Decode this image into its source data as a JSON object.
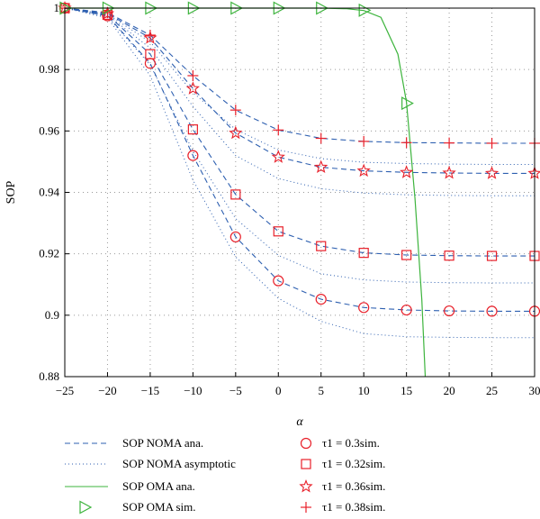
{
  "chart_data": {
    "type": "line",
    "xlabel": "α",
    "ylabel": "SOP",
    "xlim": [
      -25,
      30
    ],
    "ylim": [
      0.88,
      1.0
    ],
    "grid": true,
    "x_ticks": [
      -25,
      -20,
      -15,
      -10,
      -5,
      0,
      5,
      10,
      15,
      20,
      25,
      30
    ],
    "x_tick_labels": [
      "−25",
      "−20",
      "−15",
      "−10",
      "−5",
      "0",
      "5",
      "10",
      "15",
      "20",
      "25",
      "30"
    ],
    "y_ticks": [
      0.88,
      0.9,
      0.92,
      0.94,
      0.96,
      0.98,
      1.0
    ],
    "y_tick_labels": [
      "0.88",
      "0.9",
      "0.92",
      "0.94",
      "0.96",
      "0.98",
      "1"
    ],
    "x": [
      -25,
      -20,
      -15,
      -10,
      -5,
      0,
      5,
      10,
      15,
      20,
      25,
      30
    ],
    "colors": {
      "noma": "#2d5fb0",
      "oma": "#3db43d",
      "marker": "#e8202a"
    },
    "legend": [
      {
        "key": "noma_ana",
        "label": "SOP NOMA ana.",
        "style": "dashed",
        "color": "#2d5fb0"
      },
      {
        "key": "noma_asym",
        "label": "SOP NOMA asymptotic",
        "style": "dotted",
        "color": "#2d5fb0"
      },
      {
        "key": "oma_ana",
        "label": "SOP OMA ana.",
        "style": "solid",
        "color": "#3db43d"
      },
      {
        "key": "oma_sim",
        "label": "SOP OMA sim.",
        "marker": "triangle-right",
        "color": "#3db43d"
      },
      {
        "key": "t030",
        "label": "τ1 = 0.3sim.",
        "marker": "circle",
        "color": "#e8202a"
      },
      {
        "key": "t032",
        "label": "τ1 = 0.32sim.",
        "marker": "square",
        "color": "#e8202a"
      },
      {
        "key": "t036",
        "label": "τ1 = 0.36sim.",
        "marker": "star",
        "color": "#e8202a"
      },
      {
        "key": "t038",
        "label": "τ1 = 0.38sim.",
        "marker": "plus",
        "color": "#e8202a"
      }
    ],
    "noma_series": [
      {
        "name": "τ1 = 0.3sim.",
        "marker": "circle",
        "ana": [
          1.0,
          0.9975,
          0.982,
          0.952,
          0.9255,
          0.9112,
          0.9052,
          0.9025,
          0.9017,
          0.9014,
          0.9013,
          0.9013
        ],
        "asym": [
          1.0,
          0.9968,
          0.978,
          0.944,
          0.919,
          0.9055,
          0.898,
          0.894,
          0.893,
          0.8928,
          0.8927,
          0.8927
        ]
      },
      {
        "name": "τ1 = 0.32sim.",
        "marker": "square",
        "ana": [
          1.0,
          0.9978,
          0.985,
          0.9605,
          0.9393,
          0.9273,
          0.9225,
          0.9203,
          0.9196,
          0.9194,
          0.9193,
          0.9193
        ],
        "asym": [
          1.0,
          0.9972,
          0.9815,
          0.9535,
          0.9315,
          0.9195,
          0.9135,
          0.9115,
          0.9108,
          0.9106,
          0.9105,
          0.9105
        ]
      },
      {
        "name": "τ1 = 0.36sim.",
        "marker": "star",
        "ana": [
          1.0,
          0.9982,
          0.9903,
          0.9738,
          0.9593,
          0.9515,
          0.9482,
          0.947,
          0.9465,
          0.9463,
          0.9462,
          0.9462
        ],
        "asym": [
          1.0,
          0.9977,
          0.987,
          0.968,
          0.952,
          0.9445,
          0.9412,
          0.9398,
          0.9392,
          0.939,
          0.9389,
          0.9389
        ]
      },
      {
        "name": "τ1 = 0.38sim.",
        "marker": "plus",
        "ana": [
          1.0,
          0.9985,
          0.9912,
          0.978,
          0.9668,
          0.9603,
          0.9576,
          0.9566,
          0.9562,
          0.9561,
          0.956,
          0.956
        ],
        "asym": [
          1.0,
          0.998,
          0.989,
          0.9725,
          0.9605,
          0.9538,
          0.951,
          0.9498,
          0.9494,
          0.9492,
          0.9491,
          0.9491
        ]
      }
    ],
    "oma_ana": {
      "name": "SOP OMA ana.",
      "x": [
        -25,
        -20,
        -15,
        -10,
        -5,
        0,
        5,
        8,
        10,
        12,
        14,
        15,
        16,
        16.8,
        17.2
      ],
      "y": [
        1.0,
        1.0,
        1.0,
        1.0,
        1.0,
        1.0,
        1.0,
        0.9998,
        0.9992,
        0.997,
        0.985,
        0.9695,
        0.938,
        0.905,
        0.88
      ]
    },
    "oma_sim": {
      "name": "SOP OMA sim.",
      "x": [
        -25,
        -20,
        -15,
        -10,
        -5,
        0,
        5,
        10,
        15
      ],
      "y": [
        1.0,
        1.0,
        1.0,
        1.0,
        1.0,
        1.0,
        1.0,
        0.9993,
        0.969
      ]
    }
  }
}
